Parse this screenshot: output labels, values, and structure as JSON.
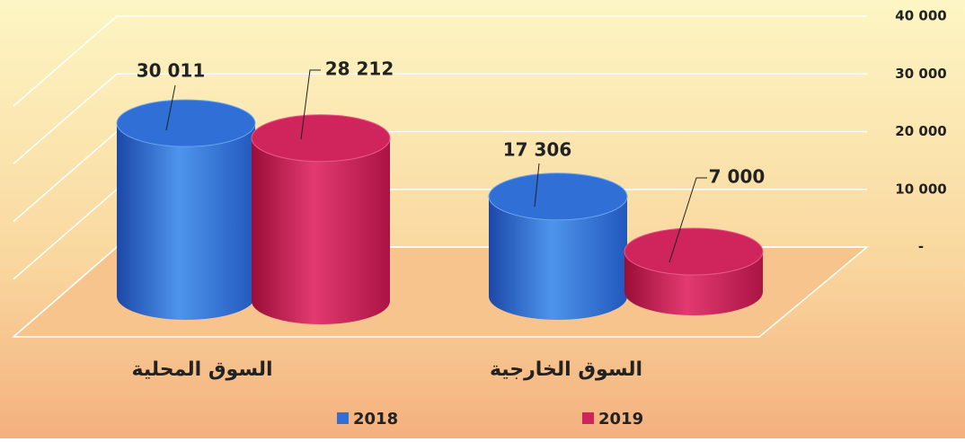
{
  "chart_data": {
    "type": "bar3d",
    "categories": [
      "السوق المحلية",
      "السوق الخارجية"
    ],
    "series": [
      {
        "name": "2018",
        "color": "#2f6fd6",
        "values": [
          30011,
          17306
        ],
        "value_labels": [
          "30 011",
          "17 306"
        ]
      },
      {
        "name": "2019",
        "color": "#d0245c",
        "values": [
          28212,
          7000
        ],
        "value_labels": [
          "28 212",
          "7 000"
        ]
      }
    ],
    "ylim": [
      0,
      40000
    ],
    "yticks": [
      {
        "value": 0,
        "label": "-"
      },
      {
        "value": 10000,
        "label": "10 000"
      },
      {
        "value": 20000,
        "label": "20 000"
      },
      {
        "value": 30000,
        "label": "30 000"
      },
      {
        "value": 40000,
        "label": "40 000"
      }
    ],
    "grid": true,
    "legend": "bottom"
  }
}
